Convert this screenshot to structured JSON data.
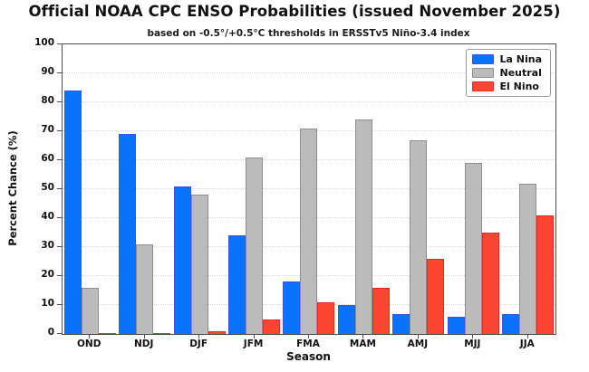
{
  "title": "Official NOAA CPC ENSO Probabilities (issued November 2025)",
  "subtitle": "based on -0.5°/+0.5°C thresholds in ERSSTv5 Niño-3.4 index",
  "chart_data": {
    "type": "bar",
    "title": "Official NOAA CPC ENSO Probabilities (issued November 2025)",
    "subtitle": "based on -0.5°/+0.5°C thresholds in ERSSTv5 Niño-3.4 index",
    "xlabel": "Season",
    "ylabel": "Percent Chance (%)",
    "ylim": [
      0,
      100
    ],
    "ytick_step": 10,
    "grid": true,
    "legend_position": "upper right",
    "categories": [
      "OND",
      "NDJ",
      "DJF",
      "JFM",
      "FMA",
      "MAM",
      "AMJ",
      "MJJ",
      "JJA"
    ],
    "series": [
      {
        "name": "La Nina",
        "color": "#0873FA",
        "edge_color": "#3A55E0",
        "values": [
          84,
          69,
          51,
          34,
          18,
          10,
          7,
          6,
          7
        ]
      },
      {
        "name": "Neutral",
        "color": "#BBBBBB",
        "edge_color": "#8E8E8E",
        "values": [
          16,
          31,
          48,
          61,
          71,
          74,
          67,
          59,
          52
        ]
      },
      {
        "name": "El Nino",
        "color": "#FB4432",
        "edge_color": "#DD3120",
        "values": [
          0,
          0,
          1,
          5,
          11,
          16,
          26,
          35,
          41
        ]
      }
    ]
  },
  "style_colors": {
    "frame": "#4F4F4F",
    "grid": "#D6D6D6",
    "background": "#FFFFFF",
    "text": "#111111"
  }
}
